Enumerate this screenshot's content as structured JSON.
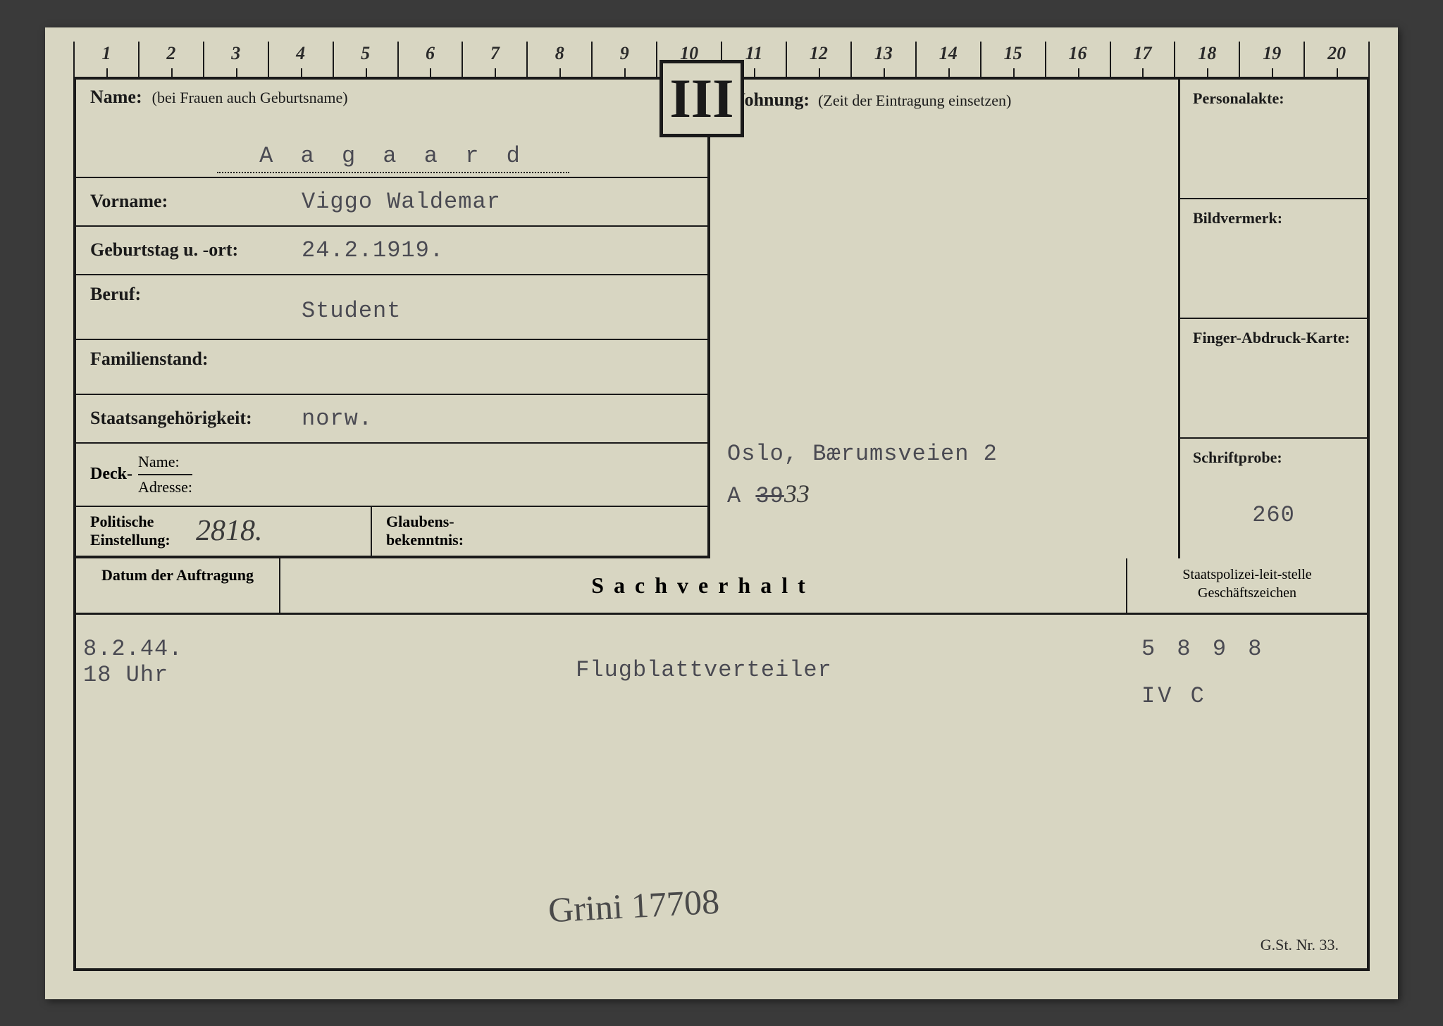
{
  "ruler": [
    "1",
    "2",
    "3",
    "4",
    "5",
    "6",
    "7",
    "8",
    "9",
    "10",
    "11",
    "12",
    "13",
    "14",
    "15",
    "16",
    "17",
    "18",
    "19",
    "20"
  ],
  "roman": "III",
  "labels": {
    "name": "Name:",
    "name_note": "(bei Frauen auch Geburtsname)",
    "vorname": "Vorname:",
    "geburtstag": "Geburtstag u. -ort:",
    "beruf": "Beruf:",
    "familienstand": "Familienstand:",
    "staats": "Staatsangehörigkeit:",
    "deck": "Deck-",
    "deck_name": "Name:",
    "deck_adresse": "Adresse:",
    "politische": "Politische Einstellung:",
    "glaubens": "Glaubens-bekenntnis:",
    "wohnung": "Wohnung:",
    "wohnung_note": "(Zeit der Eintragung einsetzen)",
    "personalakte": "Personalakte:",
    "bildvermerk": "Bildvermerk:",
    "finger": "Finger-Abdruck-Karte:",
    "schriftprobe": "Schriftprobe:",
    "datum": "Datum der Auftragung",
    "sachverhalt": "Sachverhalt",
    "staatspolizei": "Staatspolizei-leit-stelle Geschäftszeichen"
  },
  "values": {
    "surname": "A a g a a r d",
    "vorname": "Viggo Waldemar",
    "geburtstag": "24.2.1919.",
    "beruf": "Student",
    "familienstand": "",
    "staats": "norw.",
    "politische_hw": "2818.",
    "wohnung_addr": "Oslo, Bærumsveien 2",
    "wohnung_code_pre": "A ",
    "wohnung_code_strike": "39",
    "wohnung_code_post": "33",
    "schriftprobe_val": "260",
    "datum_val1": "8.2.44.",
    "datum_val2": "18 Uhr",
    "sachverhalt_val": "Flugblattverteiler",
    "signature": "Grini 17708",
    "code1": "5 8 9 8",
    "code2": "IV C"
  },
  "footer": "G.St. Nr. 33.",
  "colors": {
    "card_bg": "#d8d6c2",
    "ink": "#1a1a1a",
    "typed": "#4a4a52"
  }
}
